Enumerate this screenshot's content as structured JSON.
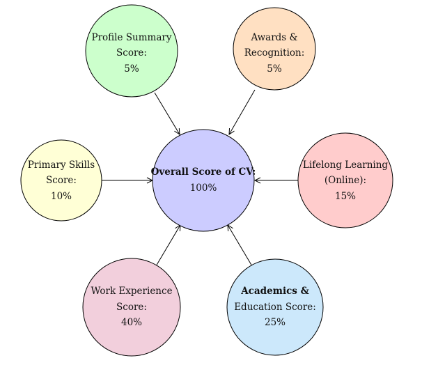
{
  "diagram": {
    "center": {
      "title": "Overall Score of CV:",
      "value": "100%",
      "fill": "#ccccff"
    },
    "nodes": [
      {
        "id": "profile-summary",
        "lines": [
          "Profile Summary",
          "Score:",
          "5%"
        ],
        "fill": "#ccffcc"
      },
      {
        "id": "awards-recognition",
        "lines": [
          "Awards &",
          "Recognition:",
          "5%"
        ],
        "fill": "#ffe0c2"
      },
      {
        "id": "primary-skills",
        "lines": [
          "Primary Skills",
          "Score:",
          "10%"
        ],
        "fill": "#ffffd6"
      },
      {
        "id": "lifelong-learning",
        "lines": [
          "Lifelong Learning",
          "(Online):",
          "15%"
        ],
        "fill": "#ffcccc"
      },
      {
        "id": "work-experience",
        "lines": [
          "Work Experience",
          "Score:",
          "40%"
        ],
        "fill": "#f2cfdc"
      },
      {
        "id": "academics-education",
        "lines": [
          "Academics &",
          "Education Score:",
          "25%"
        ],
        "fill": "#cce8fb",
        "bold_first_line": true
      }
    ],
    "colors": {
      "stroke": "#000000",
      "text": "#111111"
    }
  }
}
